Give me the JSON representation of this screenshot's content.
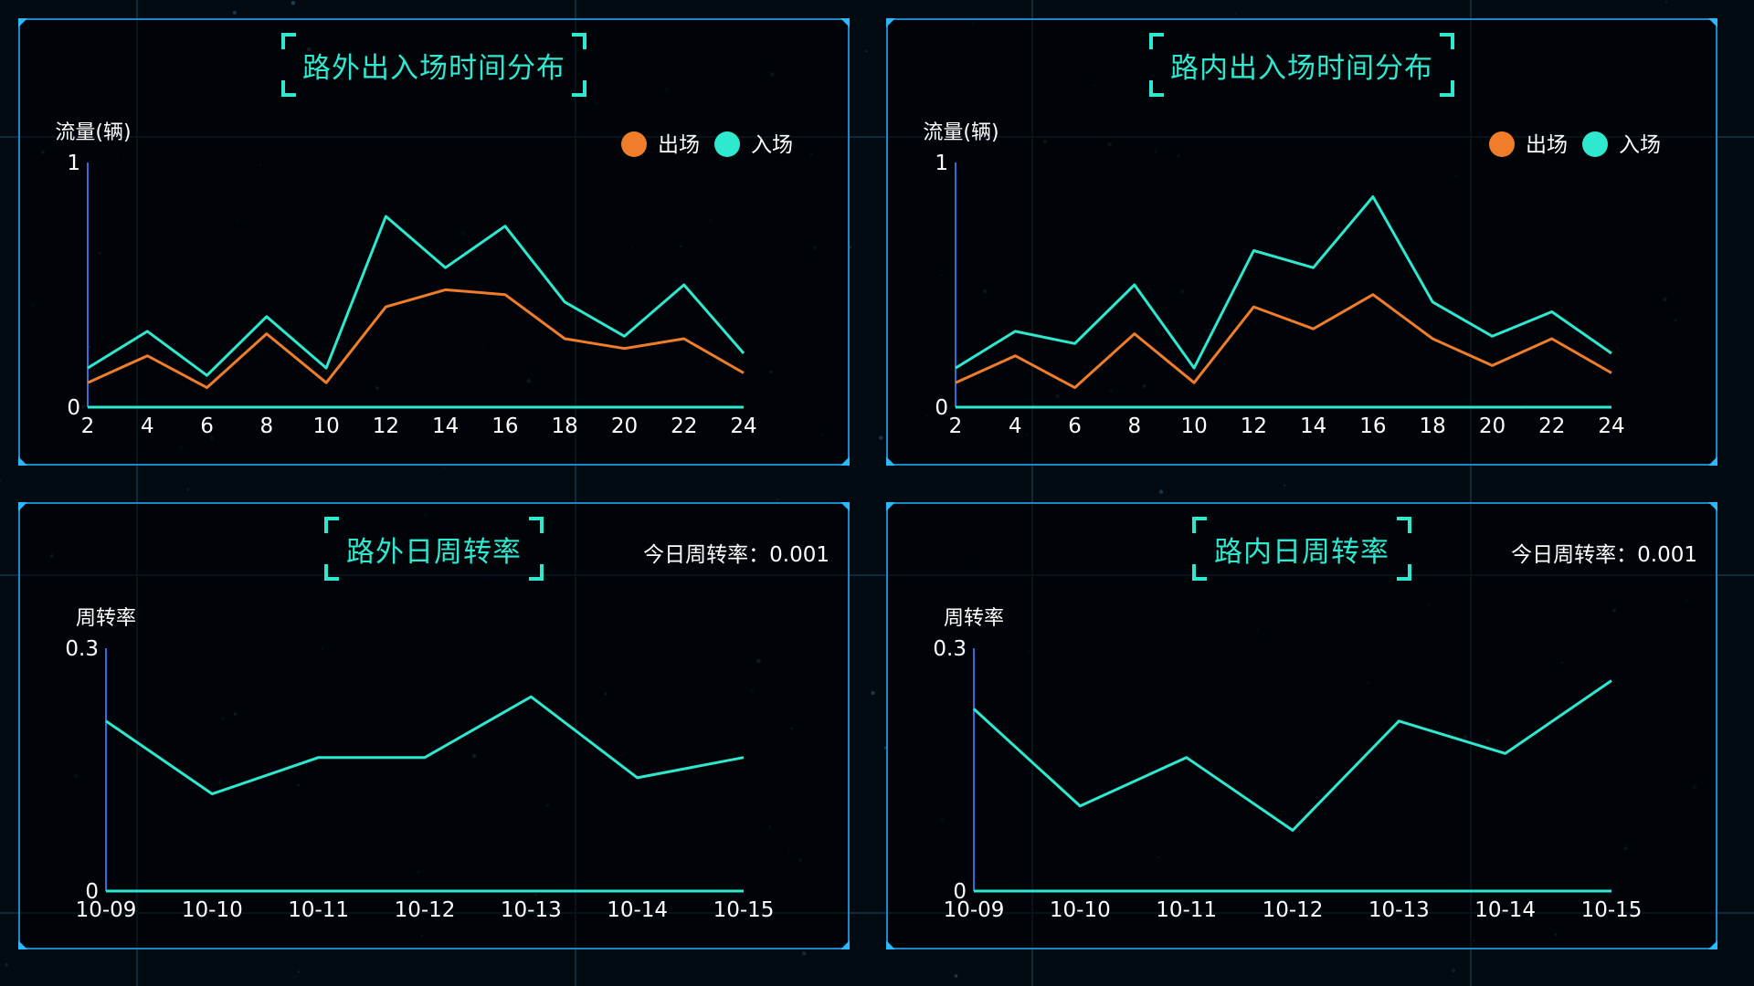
{
  "colors": {
    "accent": "#2ee8cf",
    "orange": "#f07d2a",
    "border": "#1a87c9",
    "axis": "#2f6fd6",
    "baseline": "#2ee8cf"
  },
  "panels": [
    {
      "title": "路外出入场时间分布",
      "chart_data": {
        "type": "line",
        "ylabel": "流量(辆)",
        "ylim": [
          0,
          1
        ],
        "yticks": [
          "0",
          "1"
        ],
        "categories": [
          "2",
          "4",
          "6",
          "8",
          "10",
          "12",
          "14",
          "16",
          "18",
          "20",
          "22",
          "24"
        ],
        "legend": [
          "出场",
          "入场"
        ],
        "series": [
          {
            "name": "出场",
            "color": "#f07d2a",
            "values": [
              0.1,
              0.21,
              0.08,
              0.3,
              0.1,
              0.41,
              0.48,
              0.46,
              0.28,
              0.24,
              0.28,
              0.14
            ]
          },
          {
            "name": "入场",
            "color": "#2ee8cf",
            "values": [
              0.16,
              0.31,
              0.13,
              0.37,
              0.16,
              0.78,
              0.57,
              0.74,
              0.43,
              0.29,
              0.5,
              0.22
            ]
          }
        ]
      }
    },
    {
      "title": "路内出入场时间分布",
      "chart_data": {
        "type": "line",
        "ylabel": "流量(辆)",
        "ylim": [
          0,
          1
        ],
        "yticks": [
          "0",
          "1"
        ],
        "categories": [
          "2",
          "4",
          "6",
          "8",
          "10",
          "12",
          "14",
          "16",
          "18",
          "20",
          "22",
          "24"
        ],
        "legend": [
          "出场",
          "入场"
        ],
        "series": [
          {
            "name": "出场",
            "color": "#f07d2a",
            "values": [
              0.1,
              0.21,
              0.08,
              0.3,
              0.1,
              0.41,
              0.32,
              0.46,
              0.28,
              0.17,
              0.28,
              0.14
            ]
          },
          {
            "name": "入场",
            "color": "#2ee8cf",
            "values": [
              0.16,
              0.31,
              0.26,
              0.5,
              0.16,
              0.64,
              0.57,
              0.86,
              0.43,
              0.29,
              0.39,
              0.22
            ]
          }
        ]
      }
    },
    {
      "title": "路外日周转率",
      "today_label": "今日周转率：",
      "today_value": "0.001",
      "chart_data": {
        "type": "line",
        "ylabel": "周转率",
        "ylim": [
          0,
          0.3
        ],
        "yticks": [
          "0",
          "0.3"
        ],
        "categories": [
          "10-09",
          "10-10",
          "10-11",
          "10-12",
          "10-13",
          "10-14",
          "10-15"
        ],
        "series": [
          {
            "name": "",
            "color": "#2ee8cf",
            "values": [
              0.21,
              0.12,
              0.165,
              0.165,
              0.24,
              0.14,
              0.165
            ]
          }
        ]
      }
    },
    {
      "title": "路内日周转率",
      "today_label": "今日周转率：",
      "today_value": "0.001",
      "chart_data": {
        "type": "line",
        "ylabel": "周转率",
        "ylim": [
          0,
          0.3
        ],
        "yticks": [
          "0",
          "0.3"
        ],
        "categories": [
          "10-09",
          "10-10",
          "10-11",
          "10-12",
          "10-13",
          "10-14",
          "10-15"
        ],
        "series": [
          {
            "name": "",
            "color": "#2ee8cf",
            "values": [
              0.225,
              0.105,
              0.165,
              0.075,
              0.21,
              0.17,
              0.26
            ]
          }
        ]
      }
    }
  ]
}
